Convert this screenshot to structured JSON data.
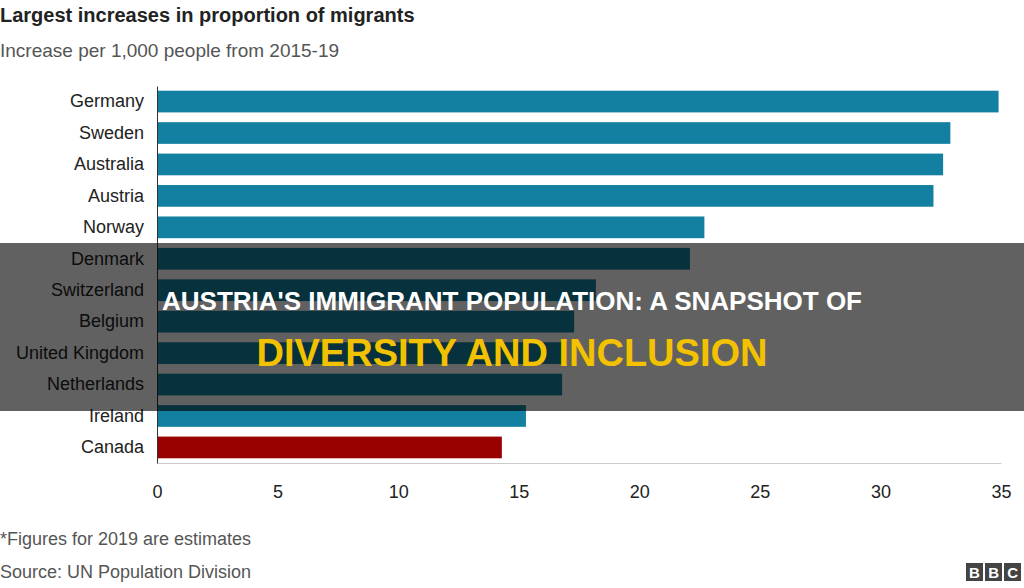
{
  "chart_data": {
    "type": "bar",
    "orientation": "horizontal",
    "title": "Largest increases in proportion of migrants",
    "subtitle": "Increase per 1,000 people from 2015-19",
    "categories": [
      "Germany",
      "Sweden",
      "Australia",
      "Austria",
      "Norway",
      "Denmark",
      "Switzerland",
      "Belgium",
      "United Kingdom",
      "Netherlands",
      "Ireland",
      "Canada"
    ],
    "values": [
      34.9,
      32.9,
      32.6,
      32.2,
      22.7,
      22.1,
      18.2,
      17.3,
      17.0,
      16.8,
      15.3,
      14.3
    ],
    "colors": [
      "#1380a1",
      "#1380a1",
      "#1380a1",
      "#1380a1",
      "#1380a1",
      "#1380a1",
      "#1380a1",
      "#1380a1",
      "#1380a1",
      "#1380a1",
      "#1380a1",
      "#990000"
    ],
    "xlim": [
      0,
      35
    ],
    "xticks": [
      0,
      5,
      10,
      15,
      20,
      25,
      30,
      35
    ],
    "grid": false,
    "note": "*Figures for 2019 are estimates",
    "source": "Source: UN Population Division",
    "annotations": [
      "AUSTRIA'S IMMIGRANT POPULATION: A SNAPSHOT OF",
      "DIVERSITY AND INCLUSION",
      "BBC"
    ]
  }
}
